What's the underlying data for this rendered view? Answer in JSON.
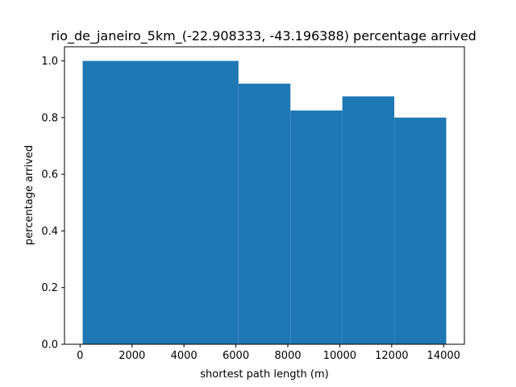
{
  "chart_data": {
    "type": "bar",
    "title": "rio_de_janeiro_5km_(-22.908333, -43.196388) percentage arrived",
    "xlabel": "shortest path length (m)",
    "ylabel": "percentage arrived",
    "bins": [
      {
        "x_start": 100,
        "x_end": 6100,
        "value": 1.0
      },
      {
        "x_start": 6100,
        "x_end": 8100,
        "value": 0.92
      },
      {
        "x_start": 8100,
        "x_end": 10100,
        "value": 0.825
      },
      {
        "x_start": 10100,
        "x_end": 12100,
        "value": 0.875
      },
      {
        "x_start": 12100,
        "x_end": 14100,
        "value": 0.8
      }
    ],
    "xlim": [
      -600,
      14800
    ],
    "ylim": [
      0,
      1.05
    ],
    "xticks": [
      0,
      2000,
      4000,
      6000,
      8000,
      10000,
      12000,
      14000
    ],
    "xtick_labels": [
      "0",
      "2000",
      "4000",
      "6000",
      "8000",
      "10000",
      "12000",
      "14000"
    ],
    "yticks": [
      0.0,
      0.2,
      0.4,
      0.6,
      0.8,
      1.0
    ],
    "ytick_labels": [
      "0.0",
      "0.2",
      "0.4",
      "0.6",
      "0.8",
      "1.0"
    ],
    "grid": false,
    "bar_color": "#1f77b4"
  }
}
